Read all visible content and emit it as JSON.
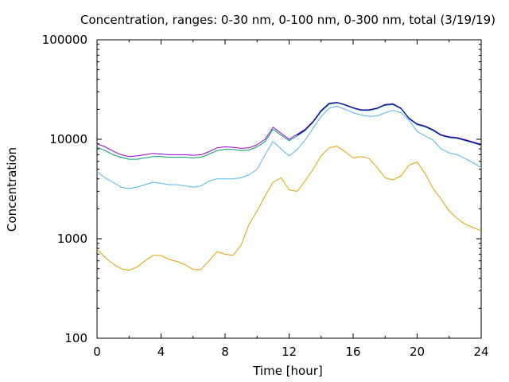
{
  "chart_data": {
    "type": "line",
    "title": "Concentration, ranges: 0-30 nm, 0-100 nm, 0-300 nm, total (3/19/19)",
    "xlabel": "Time [hour]",
    "ylabel": "Concentration",
    "xlim": [
      0,
      24
    ],
    "ylim": [
      100,
      100000
    ],
    "yscale": "log",
    "grid": false,
    "legend": "none",
    "x_ticks": [
      "0",
      "4",
      "8",
      "12",
      "16",
      "20",
      "24"
    ],
    "x_tick_values": [
      0,
      4,
      8,
      12,
      16,
      20,
      24
    ],
    "y_ticks": [
      "100",
      "1000",
      "10000",
      "100000"
    ],
    "y_tick_values": [
      100,
      1000,
      10000,
      100000
    ],
    "series": [
      {
        "color": "#e69f00",
        "x": [
          0,
          0.5,
          1,
          1.5,
          2,
          2.5,
          3,
          3.5,
          4,
          4.5,
          5,
          5.5,
          6,
          6.5,
          7,
          7.5,
          8,
          8.5,
          9,
          9.5,
          10,
          10.5,
          11,
          11.5,
          12,
          12.5,
          13,
          13.5,
          14,
          14.5,
          15,
          15.5,
          16,
          16.5,
          17,
          17.5,
          18,
          18.5,
          19,
          19.5,
          20,
          20.5,
          21,
          21.5,
          22,
          22.5,
          23,
          23.5,
          24
        ],
        "values": [
          780,
          650,
          560,
          500,
          480,
          520,
          600,
          680,
          680,
          620,
          590,
          550,
          490,
          490,
          600,
          740,
          700,
          680,
          860,
          1400,
          1900,
          2700,
          3700,
          4100,
          3100,
          3000,
          3800,
          5000,
          6800,
          8200,
          8500,
          7500,
          6500,
          6700,
          6400,
          5200,
          4100,
          3900,
          4300,
          5500,
          5900,
          4500,
          3200,
          2500,
          1900,
          1600,
          1400,
          1300,
          1200
        ]
      },
      {
        "color": "#56b4e9",
        "x": [
          0,
          0.5,
          1,
          1.5,
          2,
          2.5,
          3,
          3.5,
          4,
          4.5,
          5,
          5.5,
          6,
          6.5,
          7,
          7.5,
          8,
          8.5,
          9,
          9.5,
          10,
          10.5,
          11,
          11.5,
          12,
          12.5,
          13,
          13.5,
          14,
          14.5,
          15,
          15.5,
          16,
          16.5,
          17,
          17.5,
          18,
          18.5,
          19,
          19.5,
          20,
          20.5,
          21,
          21.5,
          22,
          22.5,
          23,
          23.5,
          24
        ],
        "values": [
          4700,
          4100,
          3700,
          3300,
          3200,
          3300,
          3500,
          3700,
          3600,
          3500,
          3500,
          3400,
          3300,
          3400,
          3800,
          4000,
          4000,
          4000,
          4100,
          4400,
          5000,
          7000,
          9500,
          8000,
          6800,
          7900,
          9800,
          13000,
          17000,
          20500,
          21500,
          20000,
          18500,
          17500,
          17000,
          17200,
          18500,
          19500,
          18500,
          15500,
          12000,
          10800,
          9800,
          8000,
          7300,
          7000,
          6400,
          5800,
          5200
        ]
      },
      {
        "color": "#009e73",
        "x": [
          0,
          0.5,
          1,
          1.5,
          2,
          2.5,
          3,
          3.5,
          4,
          4.5,
          5,
          5.5,
          6,
          6.5,
          7,
          7.5,
          8,
          8.5,
          9,
          9.5,
          10,
          10.5,
          11,
          11.5,
          12,
          12.5,
          13,
          13.5,
          14,
          14.5,
          15,
          15.5,
          16,
          16.5,
          17,
          17.5,
          18,
          18.5,
          19,
          19.5,
          20,
          20.5,
          21,
          21.5,
          22,
          22.5,
          23,
          23.5,
          24
        ],
        "values": [
          8300,
          7700,
          7000,
          6600,
          6300,
          6300,
          6500,
          6700,
          6700,
          6600,
          6600,
          6600,
          6500,
          6600,
          7100,
          7700,
          7900,
          7900,
          7700,
          7800,
          8400,
          9500,
          12600,
          11000,
          9700,
          10800,
          12200,
          14800,
          19000,
          22500,
          23200,
          22000,
          20500,
          19500,
          19500,
          20300,
          22000,
          22300,
          20200,
          16000,
          14000,
          13300,
          12200,
          10900,
          10400,
          10200,
          9700,
          9200,
          8700
        ]
      },
      {
        "color": "#9400d3",
        "x": [
          0,
          0.5,
          1,
          1.5,
          2,
          2.5,
          3,
          3.5,
          4,
          4.5,
          5,
          5.5,
          6,
          6.5,
          7,
          7.5,
          8,
          8.5,
          9,
          9.5,
          10,
          10.5,
          11,
          11.5,
          12,
          12.5,
          13,
          13.5,
          14,
          14.5,
          15,
          15.5,
          16,
          16.5,
          17,
          17.5,
          18,
          18.5,
          19,
          19.5,
          20,
          20.5,
          21,
          21.5,
          22,
          22.5,
          23,
          23.5,
          24
        ],
        "values": [
          9000,
          8400,
          7600,
          7000,
          6700,
          6800,
          7000,
          7200,
          7100,
          7000,
          7000,
          7000,
          6900,
          7000,
          7500,
          8200,
          8400,
          8300,
          8100,
          8200,
          8800,
          10000,
          13200,
          11500,
          10000,
          11200,
          12600,
          15200,
          19500,
          23000,
          23500,
          22300,
          20800,
          19800,
          19800,
          20600,
          22400,
          22700,
          20500,
          16300,
          14300,
          13600,
          12500,
          11100,
          10600,
          10400,
          9900,
          9400,
          8900
        ]
      },
      {
        "color": "#0000aa",
        "x": [
          12.5,
          13,
          13.5,
          14,
          14.5,
          15,
          15.5,
          16,
          16.5,
          17,
          17.5,
          18,
          18.5,
          19,
          19.5,
          20,
          20.5,
          21,
          21.5,
          22,
          22.5,
          23,
          23.5,
          24
        ],
        "values": [
          11000,
          12400,
          15000,
          19300,
          22900,
          23400,
          22200,
          20700,
          19700,
          19700,
          20500,
          22300,
          22600,
          20400,
          16200,
          14200,
          13500,
          12400,
          11000,
          10500,
          10300,
          9800,
          9300,
          8800
        ]
      }
    ]
  }
}
